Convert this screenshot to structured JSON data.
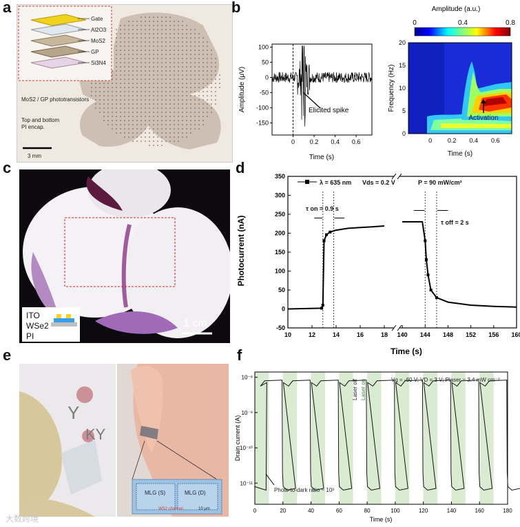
{
  "panels": {
    "a": {
      "letter": "a",
      "layers": [
        "Gate",
        "Al2O3",
        "MoS2",
        "GP",
        "Si3N4"
      ],
      "label_phototransistors": "MoS2 / GP phototransistors",
      "label_encap_1": "Top and bottom",
      "label_encap_2": "PI encap.",
      "scale_bar": "3 mm"
    },
    "b": {
      "letter": "b",
      "colorbar_title": "Amplitude (a.u.)",
      "colorbar_ticks": [
        "0",
        "0.4",
        "0.8"
      ],
      "spike_annotation": "Elicited spike",
      "activation_annotation": "Activation"
    },
    "c": {
      "letter": "c",
      "layers": [
        "ITO",
        "WSe2",
        "PI"
      ],
      "scale_bar": "1 cm"
    },
    "d": {
      "letter": "d",
      "legend": "λ = 635 nm",
      "vds": "Vds = 0.2 V",
      "power": "P = 90 mW/cm²",
      "tau_on": "τ on = 0.9 s",
      "tau_off": "τ off = 2 s"
    },
    "e": {
      "letter": "e",
      "logo_text": "KY",
      "logo_text_2": "Y",
      "mlg_s": "MLG (S)",
      "mlg_d": "MLG (D)",
      "ws_label": "WS2 channel",
      "scale": "10 μm"
    },
    "f": {
      "letter": "f",
      "laser_off": "Laser off",
      "laser_on": "Laser on",
      "conditions": "Vg = -60 V; VD = 3 V; Plaser = 3.4 mW cm⁻²",
      "ratio_annotation": "Photo-to-dark ratio ~ 10³"
    },
    "watermark": "大数跨境"
  },
  "chart_data": [
    {
      "id": "b-trace",
      "type": "line",
      "title": "",
      "xlabel": "Time (s)",
      "ylabel": "Amplitude (μV)",
      "xlim": [
        -0.2,
        0.75
      ],
      "ylim": [
        -190,
        110
      ],
      "xticks": [
        0,
        0.2,
        0.4,
        0.6
      ],
      "yticks": [
        100,
        50,
        0,
        -50,
        -100,
        -150
      ],
      "spike_time": 0.1
    },
    {
      "id": "b-spectrogram",
      "type": "heatmap",
      "xlabel": "Time (s)",
      "ylabel": "Frequency (Hz)",
      "xlim": [
        -0.2,
        0.75
      ],
      "ylim": [
        0,
        20
      ],
      "xticks": [
        0,
        0.2,
        0.4,
        0.6
      ],
      "yticks": [
        0,
        5,
        10,
        15,
        20
      ],
      "colorbar_range": [
        0,
        0.8
      ]
    },
    {
      "id": "d-photocurrent",
      "type": "line",
      "xlabel": "Time (s)",
      "ylabel": "Photocurrent (nA)",
      "ylim": [
        -50,
        350
      ],
      "yticks": [
        -50,
        0,
        50,
        100,
        150,
        200,
        250,
        300,
        350
      ],
      "xticks_left": [
        "10",
        "12",
        "14",
        "16",
        "18"
      ],
      "xticks_right": [
        "140",
        "144",
        "148",
        "152",
        "156",
        "160"
      ],
      "series": [
        {
          "name": "rise",
          "x": [
            10,
            12.8,
            12.9,
            13.0,
            13.2,
            13.5,
            14,
            15,
            16,
            17,
            18
          ],
          "y": [
            0,
            2,
            10,
            180,
            196,
            203,
            208,
            213,
            215,
            217,
            219
          ]
        },
        {
          "name": "decay",
          "x": [
            140,
            143.5,
            144,
            144.2,
            144.5,
            145,
            146,
            148,
            152,
            156,
            160
          ],
          "y": [
            230,
            230,
            180,
            130,
            90,
            50,
            30,
            18,
            10,
            7,
            5
          ]
        }
      ]
    },
    {
      "id": "f-drain",
      "type": "line",
      "xlabel": "Time (s)",
      "ylabel": "Drain current (A)",
      "xlim": [
        0,
        180
      ],
      "xticks": [
        "0",
        "20",
        "40",
        "60",
        "80",
        "100",
        "120",
        "140",
        "160",
        "180"
      ],
      "yticks": [
        "10⁻⁸",
        "10⁻⁹",
        "10⁻¹⁰",
        "10⁻¹¹"
      ],
      "on_intervals": [
        [
          0,
          10
        ],
        [
          20,
          30
        ],
        [
          40,
          50
        ],
        [
          60,
          70
        ],
        [
          80,
          90
        ],
        [
          100,
          110
        ],
        [
          120,
          130
        ],
        [
          140,
          150
        ],
        [
          160,
          170
        ]
      ],
      "dark_level_log": -11.2,
      "photo_level_log": -8.1
    }
  ]
}
